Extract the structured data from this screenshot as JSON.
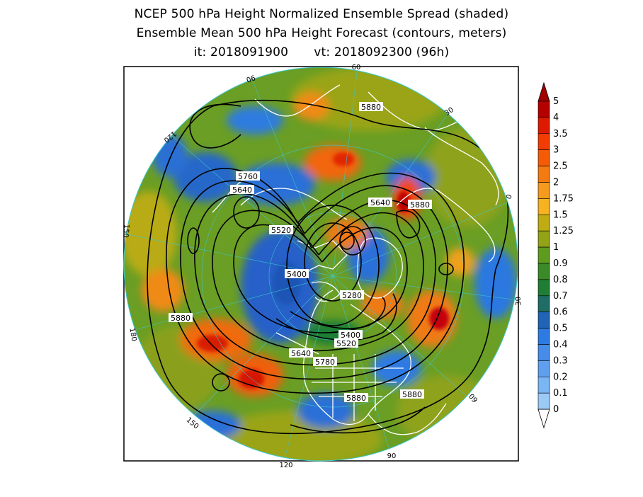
{
  "titles": {
    "line1": "NCEP 500 hPa Height Normalized Ensemble Spread (shaded)",
    "line2": "Ensemble Mean 500 hPa Height Forecast (contours, meters)",
    "init_label": "it: 2018091900",
    "valid_label": "vt: 2018092300 (96h)"
  },
  "map": {
    "projection": "north-polar-stereographic",
    "longitude_labels": [
      "60",
      "30",
      "0",
      "30",
      "60",
      "90",
      "120",
      "150",
      "180",
      "150",
      "120",
      "90"
    ],
    "contour_labels": [
      "5880",
      "5760",
      "5640",
      "5640",
      "5880",
      "5520",
      "5400",
      "5280",
      "5880",
      "5400",
      "5520",
      "5640",
      "5780",
      "5880",
      "5880"
    ]
  },
  "colorbar": {
    "labels": [
      "5",
      "4",
      "3.5",
      "3",
      "2.5",
      "2",
      "1.75",
      "1.5",
      "1.25",
      "1",
      "0.9",
      "0.8",
      "0.7",
      "0.6",
      "0.5",
      "0.4",
      "0.3",
      "0.2",
      "0.1",
      "0"
    ],
    "colors": [
      "#b50000",
      "#dd1a00",
      "#f23c00",
      "#f55b06",
      "#f47a12",
      "#f59a1c",
      "#f5b221",
      "#bfab12",
      "#93a316",
      "#5e9c20",
      "#3a8a28",
      "#1f7e35",
      "#1e6d66",
      "#1f64b5",
      "#2d7ae3",
      "#468ce9",
      "#5fa0ee",
      "#7ab6f3",
      "#9ccaf7"
    ],
    "overflow_color": "#a00000",
    "underflow_color": "#ffffff"
  }
}
